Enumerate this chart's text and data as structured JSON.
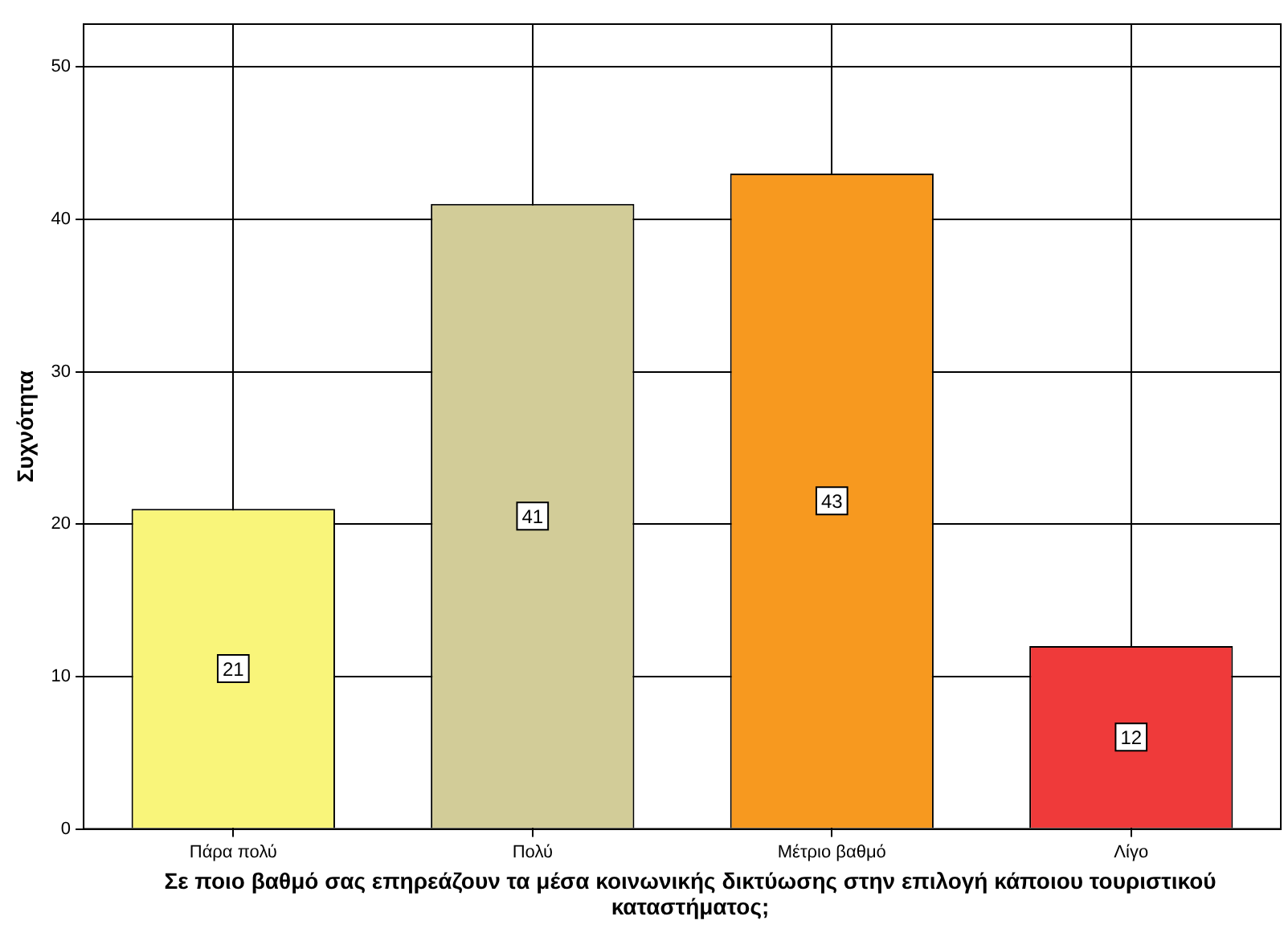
{
  "chart_data": {
    "type": "bar",
    "xlabel": "Σε ποιο βαθμό σας επηρεάζουν τα μέσα κοινωνικής δικτύωσης στην επιλογή κάποιου τουριστικού καταστήματος;",
    "ylabel": "Συχνότητα",
    "categories": [
      "Πάρα πολύ",
      "Πολύ",
      "Μέτριο βαθμό",
      "Λίγο"
    ],
    "values": [
      21,
      41,
      43,
      12
    ],
    "colors": [
      "#f9f57a",
      "#d2cc98",
      "#f7991f",
      "#ef3a3a"
    ],
    "ylim": [
      0,
      52.8
    ],
    "yticks": [
      0,
      10,
      20,
      30,
      40,
      50
    ],
    "grid": true,
    "data_labels": true
  }
}
